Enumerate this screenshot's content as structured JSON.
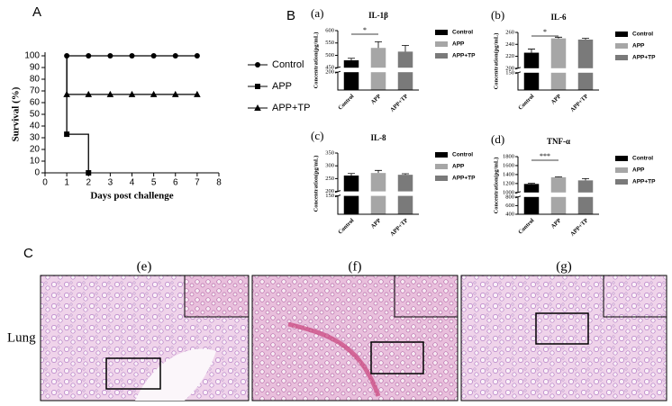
{
  "panel_labels": [
    "A",
    "B",
    "C"
  ],
  "chart_data": [
    {
      "type": "line",
      "step": true,
      "start_value": 100,
      "ylabel": "Survival (%)",
      "xlabel": "Days post challenge",
      "x": [
        1,
        2,
        3,
        4,
        5,
        6,
        7
      ],
      "xlim": [
        0,
        8
      ],
      "xticks": [
        0,
        1,
        2,
        3,
        4,
        5,
        6,
        7,
        8
      ],
      "ylim": [
        0,
        100
      ],
      "yticks": [
        0,
        10,
        20,
        30,
        40,
        50,
        60,
        70,
        80,
        90,
        100
      ],
      "series": [
        {
          "name": "Control",
          "color": "#000000",
          "marker": "circle",
          "values": [
            100,
            100,
            100,
            100,
            100,
            100,
            100
          ]
        },
        {
          "name": "APP",
          "color": "#000000",
          "marker": "square",
          "values": [
            33,
            0,
            null,
            null,
            null,
            null,
            null
          ]
        },
        {
          "name": "APP+TP",
          "color": "#000000",
          "marker": "triangle",
          "values": [
            67,
            67,
            67,
            67,
            67,
            67,
            67
          ]
        }
      ]
    },
    {
      "type": "bar",
      "panel": "(a)",
      "title": "IL-1β",
      "ylabel": "Concentration(pg/mL)",
      "annotation": "*",
      "categories": [
        "Control",
        "APP",
        "APP+TP"
      ],
      "values": [
        480,
        530,
        515
      ],
      "errors": [
        8,
        25,
        25
      ],
      "colors": [
        "#000000",
        "#a6a6a6",
        "#7a7a7a"
      ],
      "ylim": [
        0,
        600
      ],
      "ybreak": [
        200,
        450
      ],
      "yticks": [
        200,
        450,
        500,
        550,
        600
      ]
    },
    {
      "type": "bar",
      "panel": "(b)",
      "title": "IL-6",
      "ylabel": "Concentration(pg/mL)",
      "annotation": "*",
      "categories": [
        "Control",
        "APP",
        "APP+TP"
      ],
      "values": [
        226,
        250,
        248
      ],
      "errors": [
        6,
        2,
        2
      ],
      "colors": [
        "#000000",
        "#a6a6a6",
        "#7a7a7a"
      ],
      "ylim": [
        0,
        260
      ],
      "ybreak": [
        150,
        200
      ],
      "yticks": [
        150,
        200,
        220,
        240,
        260
      ]
    },
    {
      "type": "bar",
      "panel": "(c)",
      "title": "IL-8",
      "ylabel": "Concentration(pg/mL)",
      "categories": [
        "Control",
        "APP",
        "APP+TP"
      ],
      "values": [
        262,
        272,
        265
      ],
      "errors": [
        8,
        10,
        4
      ],
      "colors": [
        "#000000",
        "#a6a6a6",
        "#7a7a7a"
      ],
      "ylim": [
        0,
        350
      ],
      "ybreak": [
        150,
        200
      ],
      "yticks": [
        150,
        200,
        250,
        300,
        350
      ]
    },
    {
      "type": "bar",
      "panel": "(d)",
      "title": "TNF-α",
      "ylabel": "Concentration(pg/mL)",
      "annotation": "***",
      "categories": [
        "Control",
        "APP",
        "APP+TP"
      ],
      "values": [
        1190,
        1340,
        1270
      ],
      "errors": [
        15,
        10,
        40
      ],
      "colors": [
        "#000000",
        "#a6a6a6",
        "#7a7a7a"
      ],
      "ylim": [
        400,
        1800
      ],
      "ybreak": [
        800,
        1000
      ],
      "yticks": [
        400,
        600,
        800,
        1000,
        1200,
        1400,
        1600,
        1800
      ]
    }
  ],
  "histology": {
    "row_label": "Lung",
    "labels": [
      "(e)",
      "(f)",
      "(g)"
    ]
  }
}
